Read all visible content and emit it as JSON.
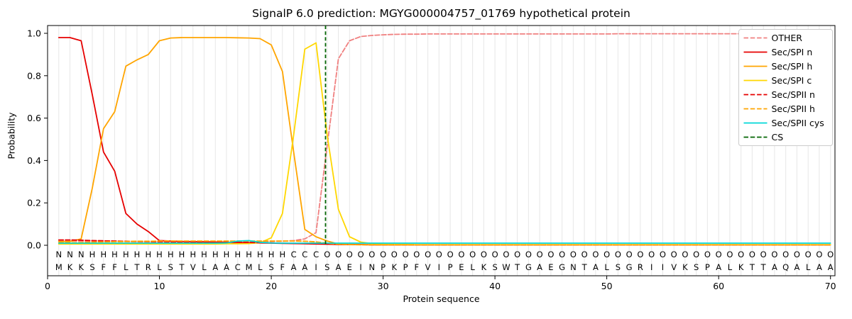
{
  "chart_data": {
    "type": "line",
    "title": "SignalP 6.0 prediction: MGYG000004757_01769 hypothetical protein",
    "xlabel": "Protein sequence",
    "ylabel": "Probability",
    "xlim": [
      0,
      70.4
    ],
    "ylim": [
      0.0,
      1.0
    ],
    "xticks": [
      0,
      10,
      20,
      30,
      40,
      50,
      60,
      70
    ],
    "yticks": [
      0.0,
      0.2,
      0.4,
      0.6,
      0.8,
      1.0
    ],
    "grid": "vertical-per-residue",
    "legend_position": "upper right",
    "style": {
      "grid_color": "#e7e7e7"
    },
    "sequence": "MKKSFFLTRLSTVLAACMLSFAAISAEINPKPFVIPELKSWTGAEGNTALSGRIIVKSPALKTTAQALAA",
    "region_annotation": "NNNHHHHHHHHHHHHHHHHHHCCCOOOOOOOOOOOOOOOOOOOOOOOOOOOOOOOOOOOOOOOOOOOOOO",
    "region_colors": {
      "N": "#e60000",
      "H": "#ffa500",
      "C": "#ffd700",
      "O": "#999999"
    },
    "cs": {
      "label": "CS",
      "x": 24.85,
      "position": "24-25",
      "color": "#006400"
    },
    "series": [
      {
        "name": "OTHER",
        "color": "#f08080",
        "dash": true,
        "values": [
          0.02,
          0.02,
          0.02,
          0.019,
          0.018,
          0.018,
          0.017,
          0.017,
          0.016,
          0.016,
          0.016,
          0.016,
          0.016,
          0.016,
          0.016,
          0.016,
          0.016,
          0.016,
          0.017,
          0.018,
          0.019,
          0.022,
          0.03,
          0.06,
          0.47,
          0.88,
          0.965,
          0.985,
          0.99,
          0.993,
          0.995,
          0.996,
          0.996,
          0.997,
          0.997,
          0.997,
          0.997,
          0.997,
          0.997,
          0.997,
          0.997,
          0.997,
          0.997,
          0.997,
          0.997,
          0.997,
          0.997,
          0.997,
          0.997,
          0.997,
          0.998,
          0.998,
          0.998,
          0.998,
          0.998,
          0.998,
          0.998,
          0.998,
          0.998,
          0.998,
          0.998,
          0.998,
          0.998,
          0.998,
          0.998,
          0.998,
          0.998,
          0.998,
          0.998,
          0.998
        ]
      },
      {
        "name": "Sec/SPI n",
        "color": "#e60000",
        "dash": false,
        "values": [
          0.98,
          0.98,
          0.965,
          0.71,
          0.44,
          0.35,
          0.15,
          0.1,
          0.065,
          0.022,
          0.02,
          0.018,
          0.017,
          0.016,
          0.015,
          0.014,
          0.013,
          0.012,
          0.011,
          0.01,
          0.009,
          0.008,
          0.007,
          0.006,
          0.005,
          0.004,
          0.003,
          0.003,
          0.002,
          0.002,
          0.002,
          0.002,
          0.002,
          0.002,
          0.002,
          0.002,
          0.002,
          0.002,
          0.002,
          0.002,
          0.002,
          0.002,
          0.002,
          0.002,
          0.002,
          0.002,
          0.002,
          0.002,
          0.002,
          0.002,
          0.002,
          0.002,
          0.002,
          0.002,
          0.002,
          0.002,
          0.002,
          0.002,
          0.002,
          0.002,
          0.002,
          0.002,
          0.002,
          0.002,
          0.002,
          0.002,
          0.002,
          0.002,
          0.002,
          0.002
        ]
      },
      {
        "name": "Sec/SPI h",
        "color": "#ffa500",
        "dash": false,
        "values": [
          0.018,
          0.018,
          0.03,
          0.27,
          0.55,
          0.63,
          0.845,
          0.875,
          0.9,
          0.965,
          0.978,
          0.98,
          0.98,
          0.98,
          0.98,
          0.98,
          0.979,
          0.978,
          0.975,
          0.945,
          0.82,
          0.44,
          0.075,
          0.04,
          0.02,
          0.006,
          0.004,
          0.003,
          0.003,
          0.002,
          0.002,
          0.002,
          0.002,
          0.002,
          0.002,
          0.002,
          0.002,
          0.002,
          0.002,
          0.002,
          0.002,
          0.002,
          0.002,
          0.002,
          0.002,
          0.002,
          0.002,
          0.002,
          0.002,
          0.002,
          0.002,
          0.002,
          0.002,
          0.002,
          0.002,
          0.002,
          0.002,
          0.002,
          0.002,
          0.002,
          0.002,
          0.002,
          0.002,
          0.002,
          0.002,
          0.002,
          0.002,
          0.002,
          0.002,
          0.002
        ]
      },
      {
        "name": "Sec/SPI c",
        "color": "#ffd700",
        "dash": false,
        "values": [
          0.006,
          0.006,
          0.006,
          0.006,
          0.006,
          0.006,
          0.006,
          0.006,
          0.006,
          0.006,
          0.006,
          0.006,
          0.006,
          0.006,
          0.006,
          0.007,
          0.007,
          0.008,
          0.012,
          0.035,
          0.15,
          0.52,
          0.925,
          0.955,
          0.52,
          0.17,
          0.04,
          0.015,
          0.008,
          0.005,
          0.004,
          0.004,
          0.003,
          0.003,
          0.003,
          0.003,
          0.003,
          0.003,
          0.003,
          0.003,
          0.003,
          0.003,
          0.003,
          0.003,
          0.003,
          0.003,
          0.003,
          0.003,
          0.003,
          0.003,
          0.003,
          0.003,
          0.003,
          0.003,
          0.003,
          0.003,
          0.003,
          0.003,
          0.003,
          0.003,
          0.003,
          0.003,
          0.003,
          0.003,
          0.003,
          0.003,
          0.003,
          0.003,
          0.003,
          0.003
        ]
      },
      {
        "name": "Sec/SPII n",
        "color": "#e60000",
        "dash": true,
        "values": [
          0.025,
          0.025,
          0.024,
          0.022,
          0.021,
          0.02,
          0.019,
          0.018,
          0.018,
          0.017,
          0.016,
          0.016,
          0.015,
          0.015,
          0.014,
          0.014,
          0.013,
          0.013,
          0.012,
          0.011,
          0.01,
          0.009,
          0.008,
          0.007,
          0.006,
          0.004,
          0.003,
          0.003,
          0.002,
          0.002,
          0.002,
          0.002,
          0.002,
          0.002,
          0.002,
          0.002,
          0.002,
          0.002,
          0.002,
          0.002,
          0.002,
          0.002,
          0.002,
          0.002,
          0.002,
          0.002,
          0.002,
          0.002,
          0.002,
          0.002,
          0.002,
          0.002,
          0.002,
          0.002,
          0.002,
          0.002,
          0.002,
          0.002,
          0.002,
          0.002,
          0.002,
          0.002,
          0.002,
          0.002,
          0.002,
          0.002,
          0.002,
          0.002,
          0.002,
          0.002
        ]
      },
      {
        "name": "Sec/SPII h",
        "color": "#ffa500",
        "dash": true,
        "values": [
          0.012,
          0.012,
          0.013,
          0.015,
          0.016,
          0.017,
          0.018,
          0.019,
          0.019,
          0.02,
          0.02,
          0.02,
          0.02,
          0.02,
          0.02,
          0.02,
          0.02,
          0.02,
          0.02,
          0.02,
          0.02,
          0.02,
          0.019,
          0.016,
          0.01,
          0.005,
          0.003,
          0.002,
          0.002,
          0.002,
          0.002,
          0.002,
          0.002,
          0.002,
          0.002,
          0.002,
          0.002,
          0.002,
          0.002,
          0.002,
          0.002,
          0.002,
          0.002,
          0.002,
          0.002,
          0.002,
          0.002,
          0.002,
          0.002,
          0.002,
          0.002,
          0.002,
          0.002,
          0.002,
          0.002,
          0.002,
          0.002,
          0.002,
          0.002,
          0.002,
          0.002,
          0.002,
          0.002,
          0.002,
          0.002,
          0.002,
          0.002,
          0.002,
          0.002,
          0.002
        ]
      },
      {
        "name": "Sec/SPII cys",
        "color": "#00d8d8",
        "dash": false,
        "values": [
          0.01,
          0.01,
          0.01,
          0.01,
          0.01,
          0.01,
          0.01,
          0.01,
          0.01,
          0.01,
          0.01,
          0.01,
          0.01,
          0.01,
          0.01,
          0.011,
          0.02,
          0.022,
          0.014,
          0.011,
          0.01,
          0.01,
          0.01,
          0.01,
          0.01,
          0.01,
          0.01,
          0.01,
          0.01,
          0.01,
          0.01,
          0.01,
          0.01,
          0.01,
          0.01,
          0.01,
          0.01,
          0.01,
          0.01,
          0.01,
          0.01,
          0.01,
          0.01,
          0.01,
          0.01,
          0.01,
          0.01,
          0.01,
          0.01,
          0.01,
          0.01,
          0.01,
          0.01,
          0.01,
          0.01,
          0.01,
          0.01,
          0.01,
          0.01,
          0.01,
          0.01,
          0.01,
          0.01,
          0.01,
          0.01,
          0.01,
          0.01,
          0.01,
          0.01,
          0.01
        ]
      }
    ]
  }
}
